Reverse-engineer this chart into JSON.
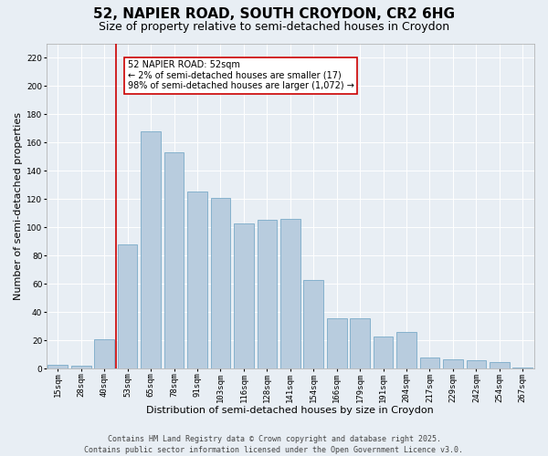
{
  "title1": "52, NAPIER ROAD, SOUTH CROYDON, CR2 6HG",
  "title2": "Size of property relative to semi-detached houses in Croydon",
  "xlabel": "Distribution of semi-detached houses by size in Croydon",
  "ylabel": "Number of semi-detached properties",
  "categories": [
    "15sqm",
    "28sqm",
    "40sqm",
    "53sqm",
    "65sqm",
    "78sqm",
    "91sqm",
    "103sqm",
    "116sqm",
    "128sqm",
    "141sqm",
    "154sqm",
    "166sqm",
    "179sqm",
    "191sqm",
    "204sqm",
    "217sqm",
    "229sqm",
    "242sqm",
    "254sqm",
    "267sqm"
  ],
  "values": [
    3,
    2,
    21,
    88,
    168,
    153,
    125,
    121,
    103,
    105,
    106,
    63,
    36,
    36,
    23,
    26,
    8,
    7,
    6,
    5,
    1
  ],
  "bar_color": "#b8ccde",
  "bar_edge_color": "#7aaac8",
  "highlight_color": "#cc0000",
  "annotation_text": "52 NAPIER ROAD: 52sqm\n← 2% of semi-detached houses are smaller (17)\n98% of semi-detached houses are larger (1,072) →",
  "annotation_box_color": "#ffffff",
  "annotation_box_edge": "#cc0000",
  "ylim": [
    0,
    230
  ],
  "yticks": [
    0,
    20,
    40,
    60,
    80,
    100,
    120,
    140,
    160,
    180,
    200,
    220
  ],
  "background_color": "#e8eef4",
  "footer1": "Contains HM Land Registry data © Crown copyright and database right 2025.",
  "footer2": "Contains public sector information licensed under the Open Government Licence v3.0.",
  "title_fontsize": 11,
  "subtitle_fontsize": 9,
  "tick_fontsize": 6.5,
  "label_fontsize": 8,
  "footer_fontsize": 6,
  "annot_fontsize": 7
}
